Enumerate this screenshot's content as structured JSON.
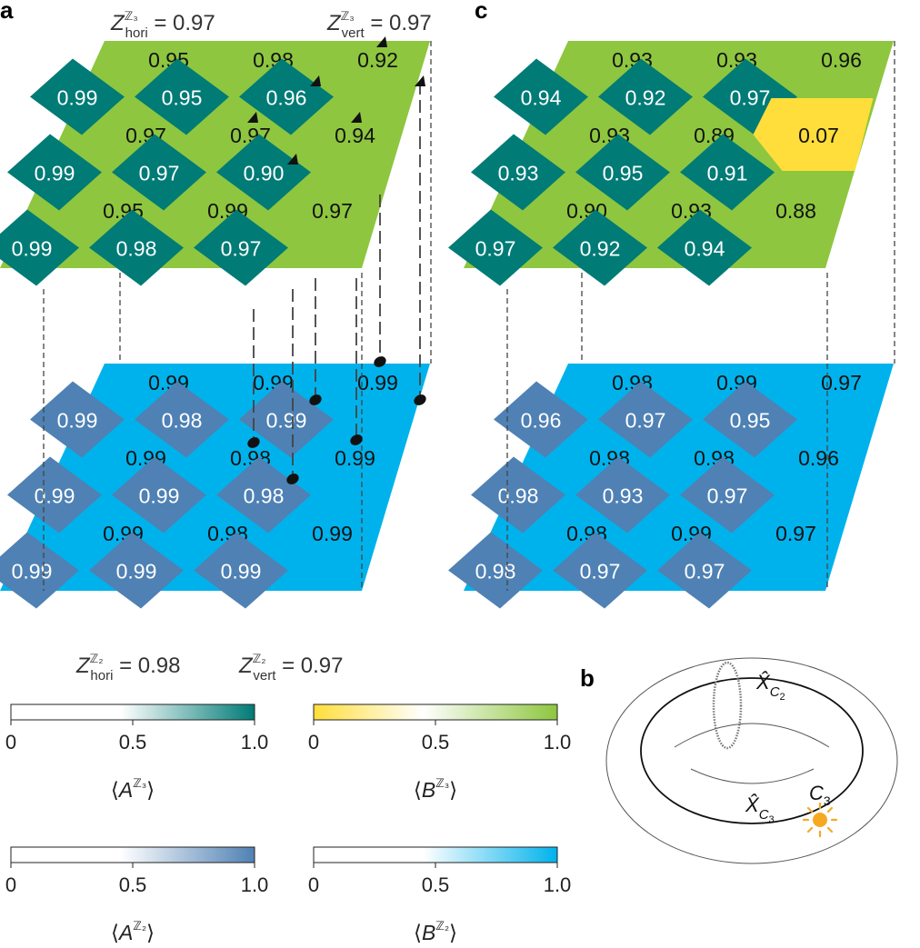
{
  "panel_labels": {
    "a": "a",
    "b": "b",
    "c": "c"
  },
  "colors": {
    "dark_teal": "#007b76",
    "yellow_green": "#8ec63f",
    "yellow": "#ffde3b",
    "steel_blue": "#4f81b4",
    "light_blue": "#00b2ec",
    "sun": "#f7a823"
  },
  "a": {
    "top_header": {
      "z_hori": {
        "sym": "Z",
        "sup": "ℤ₃",
        "sub": "hori",
        "value": " = 0.97"
      },
      "z_vert": {
        "sym": "Z",
        "sup": "ℤ₃",
        "sub": "vert",
        "value": " = 0.97"
      }
    },
    "top_rows": [
      [
        "0.95",
        "0.98",
        "0.92"
      ],
      [
        "0.99",
        "0.95",
        "0.96"
      ],
      [
        "0.97",
        "0.97",
        "0.94"
      ],
      [
        "0.99",
        "0.97",
        "0.90"
      ],
      [
        "0.95",
        "0.99",
        "0.97"
      ],
      [
        "0.99",
        "0.98",
        "0.97"
      ]
    ],
    "bottom_rows": [
      [
        "0.99",
        "0.99",
        "0.99"
      ],
      [
        "0.99",
        "0.98",
        "0.99"
      ],
      [
        "0.99",
        "0.98",
        "0.99"
      ],
      [
        "0.99",
        "0.99",
        "0.98"
      ],
      [
        "0.99",
        "0.98",
        "0.99"
      ],
      [
        "0.99",
        "0.99",
        "0.99"
      ]
    ],
    "bottom_header": {
      "z_hori": {
        "sym": "Z",
        "sup": "ℤ₂",
        "sub": "hori",
        "value": " = 0.98"
      },
      "z_vert": {
        "sym": "Z",
        "sup": "ℤ₂",
        "sub": "vert",
        "value": " = 0.97"
      }
    }
  },
  "c": {
    "top_rows": [
      [
        "0.93",
        "0.93",
        "0.96"
      ],
      [
        "0.94",
        "0.92",
        "0.97"
      ],
      [
        "0.93",
        "0.89",
        "0.07"
      ],
      [
        "0.93",
        "0.95",
        "0.91"
      ],
      [
        "0.90",
        "0.93",
        "0.88"
      ],
      [
        "0.97",
        "0.92",
        "0.94"
      ]
    ],
    "bottom_rows": [
      [
        "0.98",
        "0.99",
        "0.97"
      ],
      [
        "0.96",
        "0.97",
        "0.95"
      ],
      [
        "0.98",
        "0.98",
        "0.96"
      ],
      [
        "0.98",
        "0.93",
        "0.97"
      ],
      [
        "0.98",
        "0.99",
        "0.97"
      ],
      [
        "0.98",
        "0.97",
        "0.97"
      ]
    ]
  },
  "colorbars": [
    {
      "label_main": "A",
      "label_sup": "ℤ₃",
      "ticks": [
        "0",
        "0.5",
        "1.0"
      ],
      "start": "#ffffff",
      "end": "#007b76"
    },
    {
      "label_main": "B",
      "label_sup": "ℤ₃",
      "ticks": [
        "0",
        "0.5",
        "1.0"
      ],
      "start": "#ffde3b",
      "end": "#8ec63f"
    },
    {
      "label_main": "A",
      "label_sup": "ℤ₂",
      "ticks": [
        "0",
        "0.5",
        "1.0"
      ],
      "start": "#ffffff",
      "end": "#4f81b4"
    },
    {
      "label_main": "B",
      "label_sup": "ℤ₂",
      "ticks": [
        "0",
        "0.5",
        "1.0"
      ],
      "start": "#ffffff",
      "end": "#00b2ec"
    }
  ],
  "torus": {
    "c2_label": {
      "sym": "X̂",
      "sub": "C",
      "subsub": "2"
    },
    "c3_label": {
      "sym": "X̂",
      "sub": "C",
      "subsub": "3"
    },
    "sun_label": {
      "sym": "C",
      "sub": "3"
    }
  }
}
